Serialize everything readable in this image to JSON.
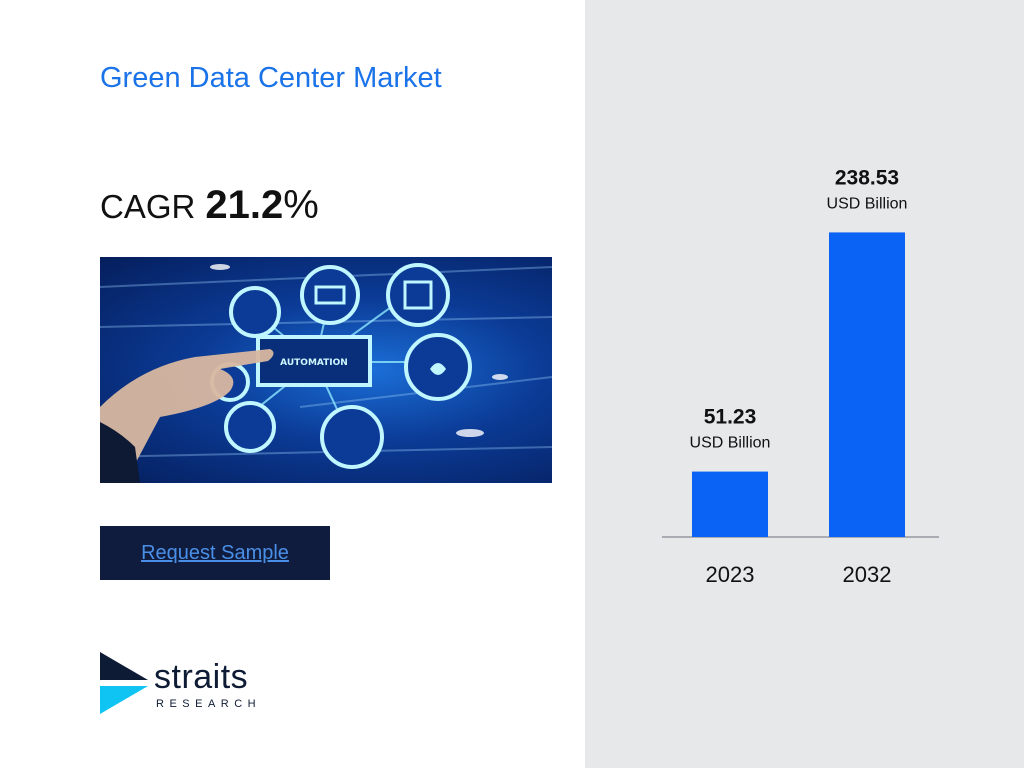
{
  "title": "Green Data Center Market",
  "cagr": {
    "label": "CAGR",
    "value": "21.2",
    "suffix": "%"
  },
  "hero_image": {
    "badge_text": "AUTOMATION"
  },
  "cta": {
    "label": "Request Sample"
  },
  "logo": {
    "word": "straits",
    "sub": "RESEARCH"
  },
  "colors": {
    "title": "#1a73e8",
    "bar": "#0b63f5",
    "panel": "#e7e8ea",
    "button": "#0f1c3d"
  },
  "chart_data": {
    "type": "bar",
    "categories": [
      "2023",
      "2032"
    ],
    "values": [
      51.23,
      238.53
    ],
    "value_labels": [
      "51.23",
      "238.53"
    ],
    "unit_label": "USD Billion",
    "ylim": [
      0,
      260
    ],
    "grid": false,
    "legend": "none"
  }
}
